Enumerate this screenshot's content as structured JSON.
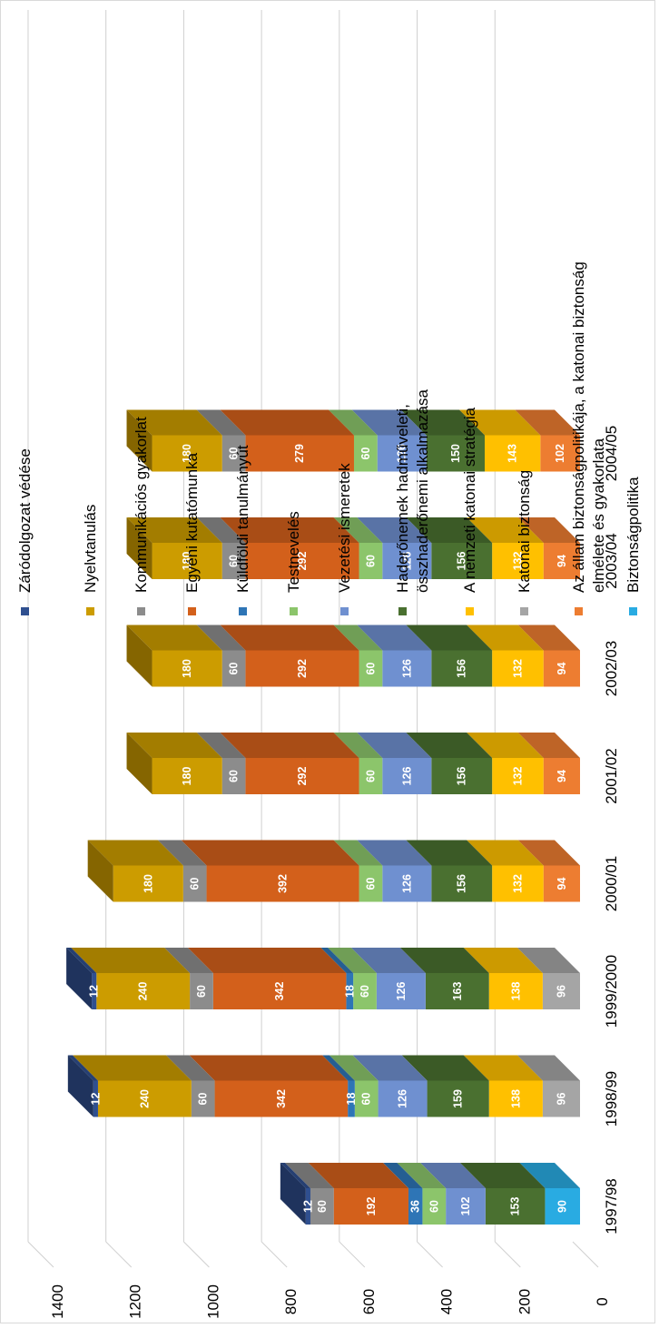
{
  "chart_data": {
    "type": "bar",
    "stacked": true,
    "orientation": "vertical",
    "title": "",
    "xlabel": "",
    "ylabel": "",
    "ylim": [
      0,
      1400
    ],
    "yticks": [
      0,
      200,
      400,
      600,
      800,
      1000,
      1200,
      1400
    ],
    "grid": true,
    "legend_position": "right",
    "categories": [
      "1997/98",
      "1998/99",
      "1999/2000",
      "2000/01",
      "2001/02",
      "2002/03",
      "2003/04",
      "2004/05"
    ],
    "series": [
      {
        "name": "Biztonságpolitika",
        "color": "#29abe2",
        "values": [
          90,
          null,
          null,
          null,
          null,
          null,
          null,
          null
        ]
      },
      {
        "name": "Az állam biztonságpolitikája, a katonai biztonság elmélete és gyakorlata",
        "color": "#ed7d31",
        "values": [
          null,
          null,
          null,
          94,
          94,
          94,
          94,
          102
        ]
      },
      {
        "name": "Katonai biztonság",
        "color": "#a5a5a5",
        "values": [
          null,
          96,
          96,
          null,
          null,
          null,
          null,
          null
        ]
      },
      {
        "name": "A nemzeti katonai stratégia",
        "color": "#ffc000",
        "values": [
          null,
          138,
          138,
          132,
          132,
          132,
          132,
          143
        ]
      },
      {
        "name": "Haderőnemek hadműveleti, összhaderőnemi alkalmazása",
        "color": "#4a7030",
        "values": [
          153,
          159,
          163,
          156,
          156,
          156,
          156,
          150
        ]
      },
      {
        "name": "Vezetési ismeretek",
        "color": "#6f90d0",
        "values": [
          102,
          126,
          126,
          126,
          126,
          126,
          126,
          126
        ]
      },
      {
        "name": "Testnevelés",
        "color": "#8cc56b",
        "values": [
          60,
          60,
          60,
          60,
          60,
          60,
          60,
          60
        ]
      },
      {
        "name": "Küldföldi tanulmányút",
        "color": "#2e75b6",
        "values": [
          36,
          18,
          18,
          null,
          null,
          null,
          null,
          null
        ]
      },
      {
        "name": "Egyéni kutatómunka",
        "color": "#d3601b",
        "values": [
          192,
          342,
          342,
          392,
          292,
          292,
          292,
          279
        ]
      },
      {
        "name": "Kommunikációs gyakorlat",
        "color": "#8c8c8c",
        "values": [
          60,
          60,
          60,
          60,
          60,
          60,
          60,
          60
        ]
      },
      {
        "name": "Nyelvtanulás",
        "color": "#cc9c00",
        "values": [
          null,
          240,
          240,
          180,
          180,
          180,
          180,
          180
        ]
      },
      {
        "name": "Záródolgozat védése",
        "color": "#2f4f8f",
        "values": [
          12,
          12,
          12,
          null,
          null,
          null,
          null,
          null
        ]
      }
    ],
    "legend_order": [
      "Záródolgozat védése",
      "Nyelvtanulás",
      "Kommunikációs gyakorlat",
      "Egyéni kutatómunka",
      "Küldföldi tanulmányút",
      "Testnevelés",
      "Vezetési ismeretek",
      "Haderőnemek hadműveleti, összhaderőnemi alkalmazása",
      "A nemzeti katonai stratégia",
      "Katonai biztonság",
      "Az állam biztonságpolitikája, a katonai biztonság elmélete és gyakorlata",
      "Biztonságpolitika"
    ],
    "legend_lines": {
      "Haderőnemek hadműveleti, összhaderőnemi alkalmazása": [
        "Haderőnemek hadműveleti,",
        "összhaderőnemi alkalmazása"
      ],
      "Az állam biztonságpolitikája, a katonai biztonság elmélete és gyakorlata": [
        "Az állam biztonságpolitikája, a katonai biztonság",
        "elmélete és gyakorlata"
      ]
    }
  }
}
